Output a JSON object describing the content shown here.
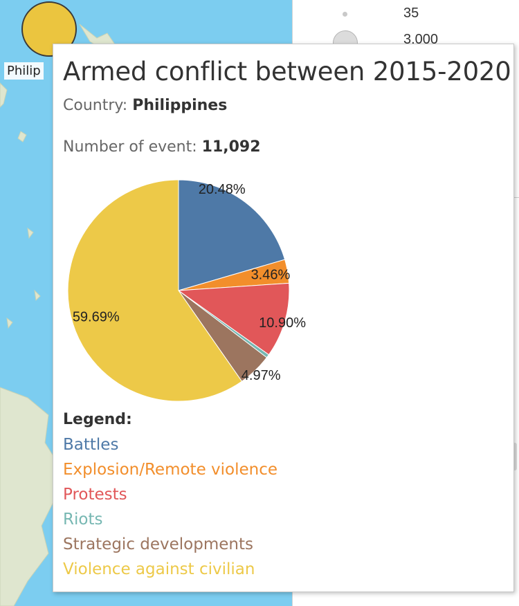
{
  "map": {
    "marker_label": "Philip",
    "marker_color": "#ebc53f",
    "water_color": "#7ccdf0",
    "land_color": "#dfe6cf"
  },
  "size_legend": {
    "values": [
      "35",
      "3,000"
    ]
  },
  "tooltip": {
    "title": "Armed conflict between 2015-2020",
    "country_label": "Country: ",
    "country_value": "Philippines",
    "events_label": "Number of event: ",
    "events_value": "11,092",
    "legend_heading": "Legend:"
  },
  "chart_data": {
    "type": "pie",
    "title": "Armed conflict between 2015-2020",
    "slices": [
      {
        "name": "Battles",
        "value": 20.48,
        "label": "20.48%",
        "color": "#4e79a7"
      },
      {
        "name": "Explosion/Remote violence",
        "value": 3.46,
        "label": "3.46%",
        "color": "#f28e2b"
      },
      {
        "name": "Protests",
        "value": 10.9,
        "label": "10.90%",
        "color": "#e15759"
      },
      {
        "name": "Riots",
        "value": 0.5,
        "label": "",
        "color": "#76b7b2"
      },
      {
        "name": "Strategic developments",
        "value": 4.97,
        "label": "4.97%",
        "color": "#9c755f"
      },
      {
        "name": "Violence against civilian",
        "value": 59.69,
        "label": "59.69%",
        "color": "#edc948"
      }
    ]
  }
}
